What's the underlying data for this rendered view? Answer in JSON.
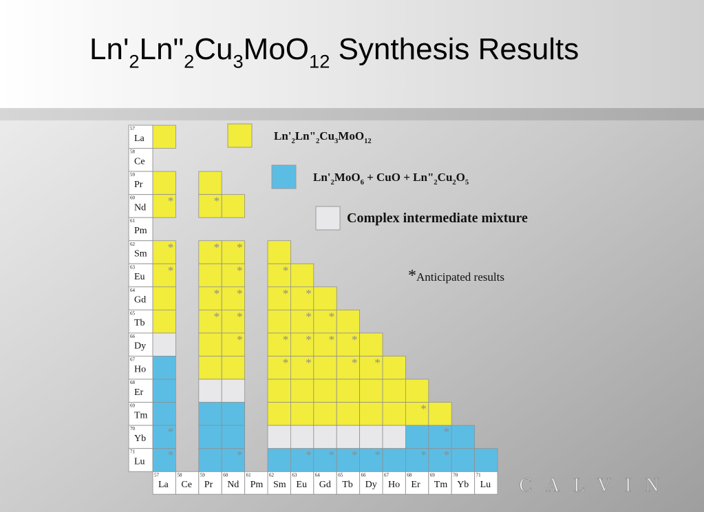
{
  "title": [
    {
      "text": "Ln'"
    },
    {
      "sub": "2"
    },
    {
      "text": "Ln\""
    },
    {
      "sub": "2"
    },
    {
      "text": "Cu"
    },
    {
      "sub": "3"
    },
    {
      "text": "MoO"
    },
    {
      "sub": "12"
    },
    {
      "text": " Synthesis Results"
    }
  ],
  "legend": [
    {
      "color": "#f2ec3c",
      "label": [
        {
          "text": "Ln'"
        },
        {
          "sub": "2"
        },
        {
          "text": "Ln\""
        },
        {
          "sub": "2"
        },
        {
          "text": "Cu"
        },
        {
          "sub": "3"
        },
        {
          "text": "MoO"
        },
        {
          "sub": "12"
        }
      ]
    },
    {
      "color": "#5bbde4",
      "label": [
        {
          "text": "Ln'"
        },
        {
          "sub": "2"
        },
        {
          "text": "MoO"
        },
        {
          "sub": "6"
        },
        {
          "text": " + CuO + Ln\""
        },
        {
          "sub": "2"
        },
        {
          "text": "Cu"
        },
        {
          "sub": "2"
        },
        {
          "text": "O"
        },
        {
          "sub": "5"
        }
      ]
    },
    {
      "color": "#e8e8ea",
      "label": [
        {
          "text": "Complex intermediate mixture"
        }
      ]
    }
  ],
  "note": {
    "mark": "*",
    "text": "Anticipated results"
  },
  "elements": [
    {
      "number": 57,
      "symbol": "La"
    },
    {
      "number": 58,
      "symbol": "Ce"
    },
    {
      "number": 59,
      "symbol": "Pr"
    },
    {
      "number": 60,
      "symbol": "Nd"
    },
    {
      "number": 61,
      "symbol": "Pm"
    },
    {
      "number": 62,
      "symbol": "Sm"
    },
    {
      "number": 63,
      "symbol": "Eu"
    },
    {
      "number": 64,
      "symbol": "Gd"
    },
    {
      "number": 65,
      "symbol": "Tb"
    },
    {
      "number": 66,
      "symbol": "Dy"
    },
    {
      "number": 67,
      "symbol": "Ho"
    },
    {
      "number": 68,
      "symbol": "Er"
    },
    {
      "number": 69,
      "symbol": "Tm"
    },
    {
      "number": 70,
      "symbol": "Yb"
    },
    {
      "number": 71,
      "symbol": "Lu"
    }
  ],
  "grid": [
    [
      {
        "r": 0
      }
    ],
    [],
    [
      {
        "r": 0
      },
      null,
      {
        "r": 0
      }
    ],
    [
      {
        "r": 0,
        "a": true
      },
      null,
      {
        "r": 0,
        "a": true
      },
      {
        "r": 0
      }
    ],
    [],
    [
      {
        "r": 0,
        "a": true
      },
      null,
      {
        "r": 0,
        "a": true
      },
      {
        "r": 0,
        "a": true
      },
      null,
      {
        "r": 0
      }
    ],
    [
      {
        "r": 0,
        "a": true
      },
      null,
      {
        "r": 0
      },
      {
        "r": 0,
        "a": true
      },
      null,
      {
        "r": 0,
        "a": true
      },
      {
        "r": 0
      }
    ],
    [
      {
        "r": 0
      },
      null,
      {
        "r": 0,
        "a": true
      },
      {
        "r": 0,
        "a": true
      },
      null,
      {
        "r": 0,
        "a": true
      },
      {
        "r": 0,
        "a": true
      },
      {
        "r": 0
      }
    ],
    [
      {
        "r": 0
      },
      null,
      {
        "r": 0,
        "a": true
      },
      {
        "r": 0,
        "a": true
      },
      null,
      {
        "r": 0
      },
      {
        "r": 0,
        "a": true
      },
      {
        "r": 0,
        "a": true
      },
      {
        "r": 0
      }
    ],
    [
      {
        "r": 2
      },
      null,
      {
        "r": 0
      },
      {
        "r": 0,
        "a": true
      },
      null,
      {
        "r": 0,
        "a": true
      },
      {
        "r": 0,
        "a": true
      },
      {
        "r": 0,
        "a": true
      },
      {
        "r": 0,
        "a": true
      },
      {
        "r": 0
      }
    ],
    [
      {
        "r": 1
      },
      null,
      {
        "r": 0
      },
      {
        "r": 0
      },
      null,
      {
        "r": 0,
        "a": true
      },
      {
        "r": 0,
        "a": true
      },
      {
        "r": 0
      },
      {
        "r": 0,
        "a": true
      },
      {
        "r": 0,
        "a": true
      },
      {
        "r": 0
      }
    ],
    [
      {
        "r": 1
      },
      null,
      {
        "r": 2
      },
      {
        "r": 2
      },
      null,
      {
        "r": 0
      },
      {
        "r": 0
      },
      {
        "r": 0
      },
      {
        "r": 0
      },
      {
        "r": 0
      },
      {
        "r": 0
      },
      {
        "r": 0
      }
    ],
    [
      {
        "r": 1
      },
      null,
      {
        "r": 1
      },
      {
        "r": 1
      },
      null,
      {
        "r": 0
      },
      {
        "r": 0
      },
      {
        "r": 0
      },
      {
        "r": 0
      },
      {
        "r": 0
      },
      {
        "r": 0
      },
      {
        "r": 0,
        "a": true
      },
      {
        "r": 0
      }
    ],
    [
      {
        "r": 1,
        "a": true
      },
      null,
      {
        "r": 1
      },
      {
        "r": 1
      },
      null,
      {
        "r": 2
      },
      {
        "r": 2
      },
      {
        "r": 2
      },
      {
        "r": 2
      },
      {
        "r": 2
      },
      {
        "r": 2
      },
      {
        "r": 1
      },
      {
        "r": 1,
        "a": true
      },
      {
        "r": 1
      }
    ],
    [
      {
        "r": 1,
        "a": true
      },
      null,
      {
        "r": 1
      },
      {
        "r": 1,
        "a": true
      },
      null,
      {
        "r": 1
      },
      {
        "r": 1,
        "a": true
      },
      {
        "r": 1,
        "a": true
      },
      {
        "r": 1,
        "a": true
      },
      {
        "r": 1,
        "a": true
      },
      {
        "r": 1
      },
      {
        "r": 1,
        "a": true
      },
      {
        "r": 1,
        "a": true
      },
      {
        "r": 1
      },
      {
        "r": 1
      }
    ]
  ],
  "logo": "CALVIN"
}
